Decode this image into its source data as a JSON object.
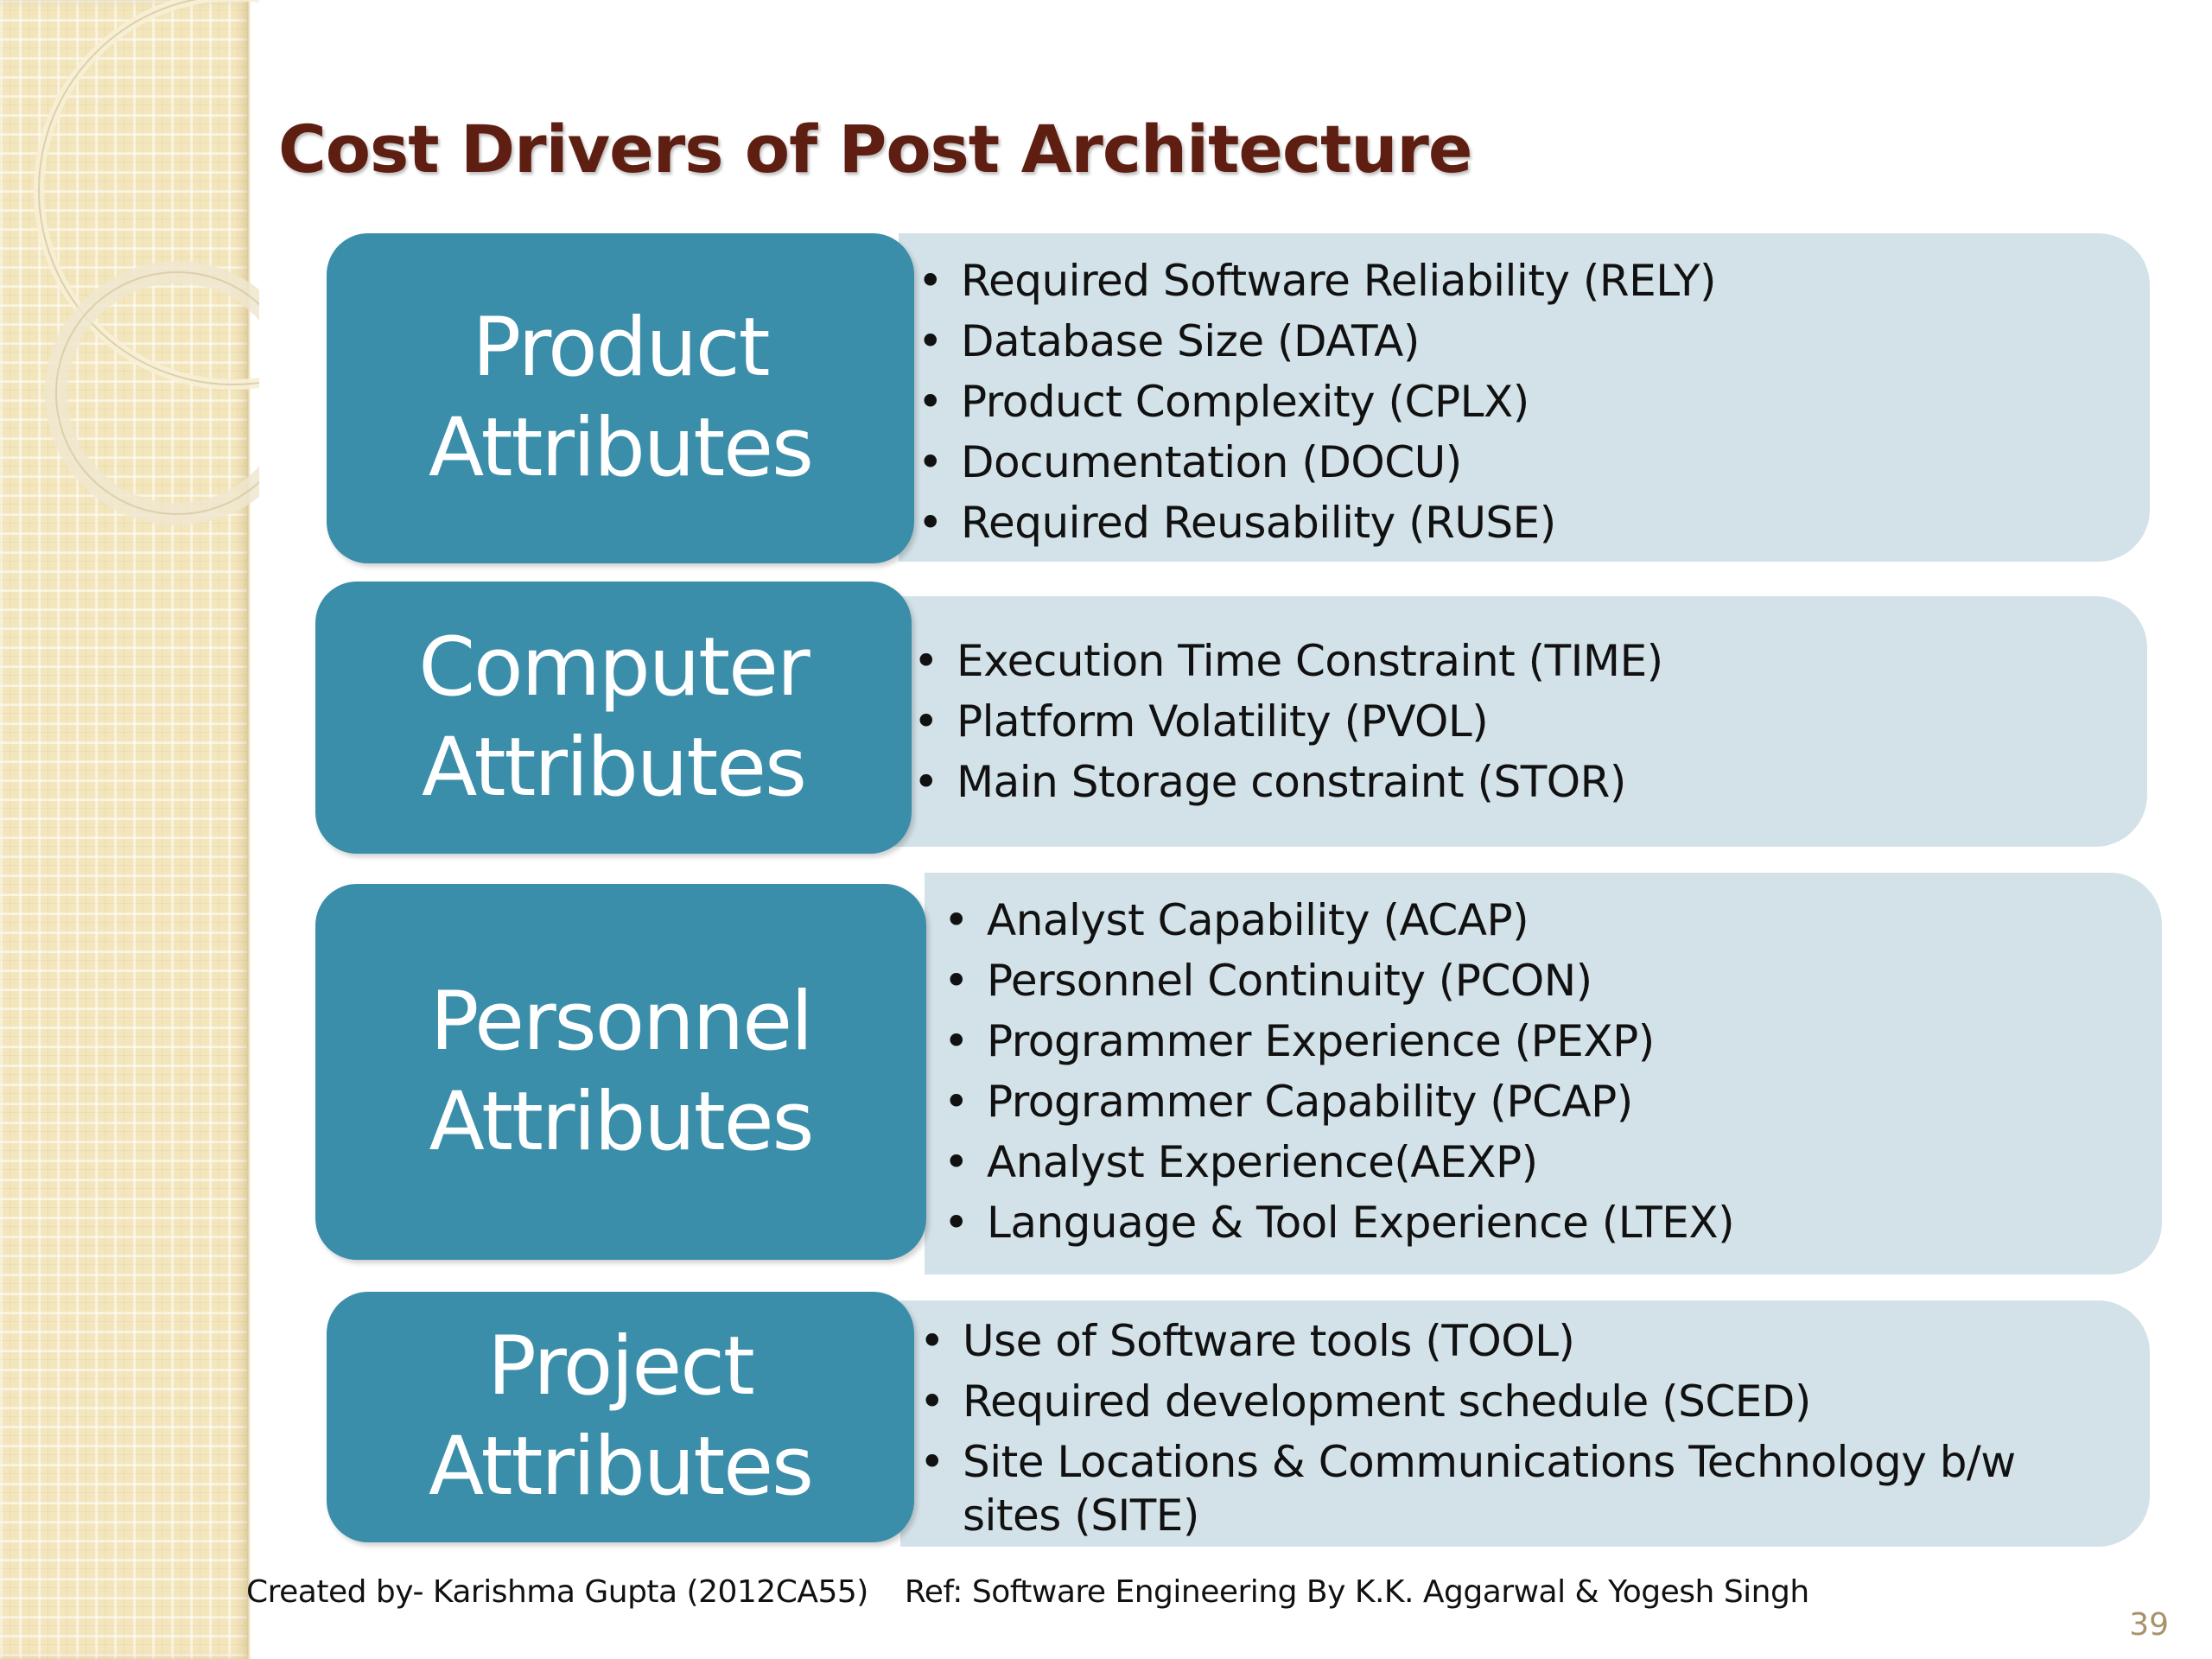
{
  "slide": {
    "title": "Cost Drivers of Post Architecture",
    "page_number": "39"
  },
  "categories": [
    {
      "line1": "Product",
      "line2": "Attributes",
      "items": [
        "Required Software Reliability (RELY)",
        "Database Size (DATA)",
        "Product Complexity (CPLX)",
        "Documentation (DOCU)",
        "Required Reusability (RUSE)"
      ]
    },
    {
      "line1": "Computer",
      "line2": "Attributes",
      "items": [
        "Execution Time Constraint (TIME)",
        "Platform Volatility (PVOL)",
        "Main Storage constraint (STOR)"
      ]
    },
    {
      "line1": "Personnel",
      "line2": "Attributes",
      "items": [
        "Analyst Capability (ACAP)",
        "Personnel Continuity (PCON)",
        "Programmer Experience (PEXP)",
        "Programmer Capability (PCAP)",
        "Analyst Experience(AEXP)",
        "Language & Tool Experience (LTEX)"
      ]
    },
    {
      "line1": "Project",
      "line2": "Attributes",
      "items": [
        "Use of Software tools (TOOL)",
        "Required development schedule (SCED)",
        "Site Locations & Communications Technology b/w sites (SITE)"
      ]
    }
  ],
  "footer": {
    "created_by": "Created by- Karishma Gupta (2012CA55)",
    "reference": "Ref:  Software Engineering By K.K. Aggarwal & Yogesh Singh"
  },
  "colors": {
    "title": "#5e1f12",
    "category_box": "#3b8ea9",
    "list_panel": "#d3e2e8",
    "sidebar": "#f3e6bd",
    "page_number": "#a8926a"
  }
}
